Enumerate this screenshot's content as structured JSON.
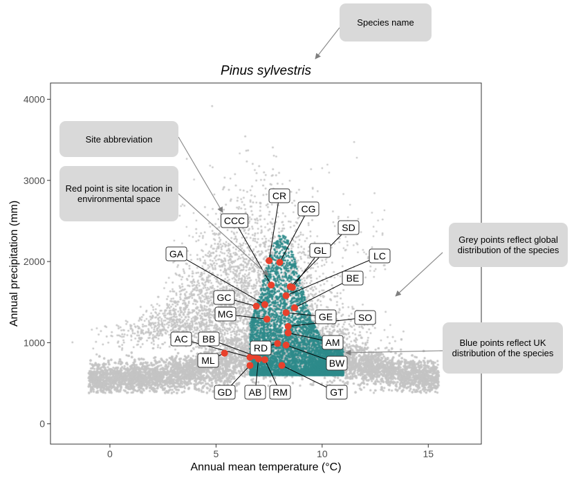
{
  "chart_data": {
    "type": "scatter",
    "title": "Pinus sylvestris",
    "xlabel": "Annual mean temperature (°C)",
    "ylabel": "Annual precipitation (mm)",
    "xlim": [
      -2.8,
      17.5
    ],
    "ylim": [
      -250,
      4200
    ],
    "x_ticks": [
      0,
      5,
      10,
      15
    ],
    "y_ticks": [
      0,
      1000,
      2000,
      3000,
      4000
    ],
    "grid": false,
    "series": [
      {
        "name": "Global distribution of the species",
        "color": "#c4c4c4",
        "description": "grey points (dense cloud, approx. -1 to 15 °C, 400–3500 mm)"
      },
      {
        "name": "UK distribution of the species",
        "color": "#2e8b8b",
        "description": "blue-green points (approx. 6.5 to 11 °C, 600–2500 mm)"
      },
      {
        "name": "Sites",
        "color": "#e8412c",
        "points": [
          {
            "label": "CR",
            "x": 7.5,
            "y": 2010
          },
          {
            "label": "CG",
            "x": 8.0,
            "y": 1990
          },
          {
            "label": "CCC",
            "x": 7.6,
            "y": 1710
          },
          {
            "label": "SD",
            "x": 8.5,
            "y": 1690
          },
          {
            "label": "GL",
            "x": 8.6,
            "y": 1680
          },
          {
            "label": "LC",
            "x": 8.3,
            "y": 1580
          },
          {
            "label": "GA",
            "x": 7.3,
            "y": 1470
          },
          {
            "label": "GC",
            "x": 6.9,
            "y": 1450
          },
          {
            "label": "BE",
            "x": 8.7,
            "y": 1430
          },
          {
            "label": "MG",
            "x": 7.4,
            "y": 1290
          },
          {
            "label": "GE",
            "x": 8.3,
            "y": 1370
          },
          {
            "label": "SO",
            "x": 8.4,
            "y": 1200
          },
          {
            "label": "AM",
            "x": 8.4,
            "y": 1120
          },
          {
            "label": "RD",
            "x": 7.9,
            "y": 990
          },
          {
            "label": "BW",
            "x": 8.3,
            "y": 970
          },
          {
            "label": "ML",
            "x": 5.4,
            "y": 870
          },
          {
            "label": "BB",
            "x": 6.8,
            "y": 840
          },
          {
            "label": "AC",
            "x": 6.6,
            "y": 820
          },
          {
            "label": "AB",
            "x": 7.0,
            "y": 800
          },
          {
            "label": "RM",
            "x": 7.3,
            "y": 790
          },
          {
            "label": "GD",
            "x": 6.6,
            "y": 720
          },
          {
            "label": "GT",
            "x": 8.1,
            "y": 720
          }
        ]
      }
    ],
    "annotations": [
      "Species name",
      "Site abbreviation",
      "Red point is site location in environmental space",
      "Grey points reflect global distribution of the species",
      "Blue points reflect UK distribution of the species"
    ]
  }
}
